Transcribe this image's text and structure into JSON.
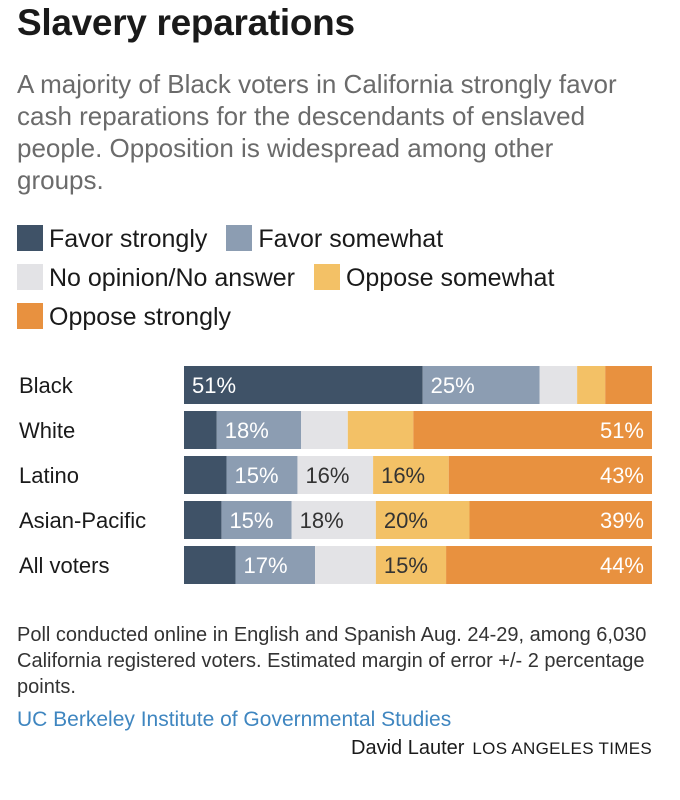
{
  "title": "Slavery reparations",
  "subtitle": "A majority of Black voters in California strongly favor cash reparations for the descendants of enslaved people. Opposition is widespread among other groups.",
  "colors": {
    "favor_strongly": "#3f5267",
    "favor_somewhat": "#8c9db2",
    "no_opinion": "#e3e3e6",
    "oppose_somewhat": "#f3c166",
    "oppose_strongly": "#e8913f"
  },
  "legend": [
    {
      "key": "favor_strongly",
      "label": "Favor strongly"
    },
    {
      "key": "favor_somewhat",
      "label": "Favor somewhat"
    },
    {
      "key": "no_opinion",
      "label": "No opinion/No answer"
    },
    {
      "key": "oppose_somewhat",
      "label": "Oppose somewhat"
    },
    {
      "key": "oppose_strongly",
      "label": "Oppose strongly"
    }
  ],
  "chart_data": {
    "type": "bar",
    "orientation": "horizontal",
    "stacked": true,
    "categories": [
      "Black",
      "White",
      "Latino",
      "Asian-Pacific",
      "All voters"
    ],
    "series": [
      {
        "key": "favor_strongly",
        "name": "Favor strongly",
        "values": [
          51,
          7,
          9,
          8,
          11
        ],
        "labels": [
          "51%",
          "",
          "",
          "",
          ""
        ]
      },
      {
        "key": "favor_somewhat",
        "name": "Favor somewhat",
        "values": [
          25,
          18,
          15,
          15,
          17
        ],
        "labels": [
          "25%",
          "18%",
          "15%",
          "15%",
          "17%"
        ]
      },
      {
        "key": "no_opinion",
        "name": "No opinion/No answer",
        "values": [
          8,
          10,
          16,
          18,
          13
        ],
        "labels": [
          "",
          "",
          "16%",
          "18%",
          ""
        ]
      },
      {
        "key": "oppose_somewhat",
        "name": "Oppose somewhat",
        "values": [
          6,
          14,
          16,
          20,
          15
        ],
        "labels": [
          "",
          "",
          "16%",
          "20%",
          "15%"
        ]
      },
      {
        "key": "oppose_strongly",
        "name": "Oppose strongly",
        "values": [
          10,
          51,
          43,
          39,
          44
        ],
        "labels": [
          "",
          "51%",
          "43%",
          "39%",
          "44%"
        ]
      }
    ]
  },
  "footnote": "Poll conducted online in English and Spanish Aug. 24-29, among 6,030 California registered voters. Estimated margin of error +/- 2 percentage points.",
  "source": "UC Berkeley Institute of Governmental Studies",
  "credit": {
    "author": "David Lauter",
    "publication": "LOS ANGELES TIMES"
  }
}
